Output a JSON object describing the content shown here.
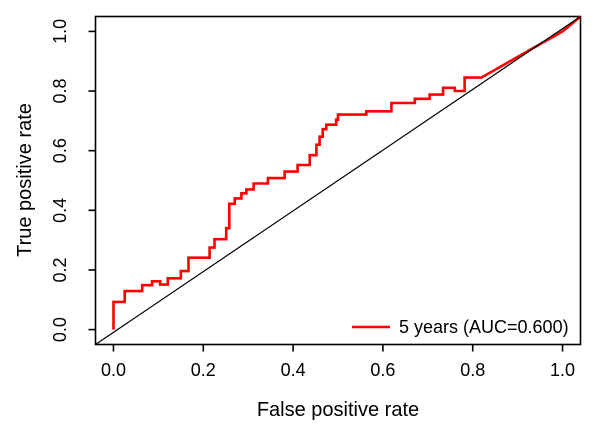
{
  "chart_data": {
    "type": "line",
    "subtype": "roc-step-curve",
    "title": "",
    "xlabel": "False positive rate",
    "ylabel": "True positive rate",
    "x_ticks": [
      0.0,
      0.2,
      0.4,
      0.6,
      0.8,
      1.0
    ],
    "y_ticks": [
      0.0,
      0.2,
      0.4,
      0.6,
      0.8,
      1.0
    ],
    "xlim": [
      -0.04,
      1.04
    ],
    "ylim": [
      -0.05,
      1.05
    ],
    "grid": false,
    "legend": {
      "position": "bottom-right",
      "entries": [
        {
          "label": "5 years (AUC=0.600)",
          "color": "#ff0000"
        }
      ]
    },
    "auc": 0.6,
    "series": [
      {
        "name": "5 years (AUC=0.600)",
        "role": "roc-curve",
        "color": "#ff0000",
        "line_width": 2.6,
        "points": [
          [
            0.0,
            0.0
          ],
          [
            0.0,
            0.093
          ],
          [
            0.025,
            0.093
          ],
          [
            0.025,
            0.129
          ],
          [
            0.064,
            0.129
          ],
          [
            0.064,
            0.149
          ],
          [
            0.086,
            0.149
          ],
          [
            0.086,
            0.162
          ],
          [
            0.104,
            0.162
          ],
          [
            0.104,
            0.151
          ],
          [
            0.121,
            0.151
          ],
          [
            0.121,
            0.172
          ],
          [
            0.15,
            0.172
          ],
          [
            0.15,
            0.196
          ],
          [
            0.167,
            0.196
          ],
          [
            0.167,
            0.241
          ],
          [
            0.214,
            0.241
          ],
          [
            0.214,
            0.275
          ],
          [
            0.225,
            0.275
          ],
          [
            0.225,
            0.303
          ],
          [
            0.251,
            0.303
          ],
          [
            0.251,
            0.34
          ],
          [
            0.258,
            0.34
          ],
          [
            0.258,
            0.422
          ],
          [
            0.27,
            0.422
          ],
          [
            0.27,
            0.44
          ],
          [
            0.285,
            0.44
          ],
          [
            0.285,
            0.457
          ],
          [
            0.296,
            0.457
          ],
          [
            0.296,
            0.47
          ],
          [
            0.312,
            0.47
          ],
          [
            0.312,
            0.49
          ],
          [
            0.344,
            0.49
          ],
          [
            0.344,
            0.508
          ],
          [
            0.381,
            0.508
          ],
          [
            0.381,
            0.53
          ],
          [
            0.41,
            0.53
          ],
          [
            0.41,
            0.552
          ],
          [
            0.437,
            0.552
          ],
          [
            0.437,
            0.585
          ],
          [
            0.452,
            0.585
          ],
          [
            0.452,
            0.62
          ],
          [
            0.459,
            0.62
          ],
          [
            0.459,
            0.647
          ],
          [
            0.466,
            0.647
          ],
          [
            0.466,
            0.672
          ],
          [
            0.474,
            0.672
          ],
          [
            0.474,
            0.687
          ],
          [
            0.496,
            0.687
          ],
          [
            0.496,
            0.704
          ],
          [
            0.5,
            0.704
          ],
          [
            0.5,
            0.721
          ],
          [
            0.563,
            0.721
          ],
          [
            0.563,
            0.732
          ],
          [
            0.619,
            0.732
          ],
          [
            0.619,
            0.76
          ],
          [
            0.671,
            0.76
          ],
          [
            0.671,
            0.774
          ],
          [
            0.704,
            0.774
          ],
          [
            0.704,
            0.788
          ],
          [
            0.734,
            0.788
          ],
          [
            0.734,
            0.811
          ],
          [
            0.76,
            0.811
          ],
          [
            0.76,
            0.8
          ],
          [
            0.782,
            0.8
          ],
          [
            0.782,
            0.845
          ],
          [
            0.819,
            0.845
          ],
          [
            1.0,
            1.0
          ]
        ]
      },
      {
        "name": "chance-diagonal",
        "role": "reference-line",
        "color": "#000000",
        "line_width": 1.2,
        "points": [
          [
            -0.04,
            -0.04
          ],
          [
            1.05,
            1.05
          ]
        ]
      }
    ],
    "colors": {
      "curve": "#ff0000",
      "reference": "#000000",
      "axis": "#000000",
      "background": "#ffffff",
      "text": "#000000"
    }
  }
}
